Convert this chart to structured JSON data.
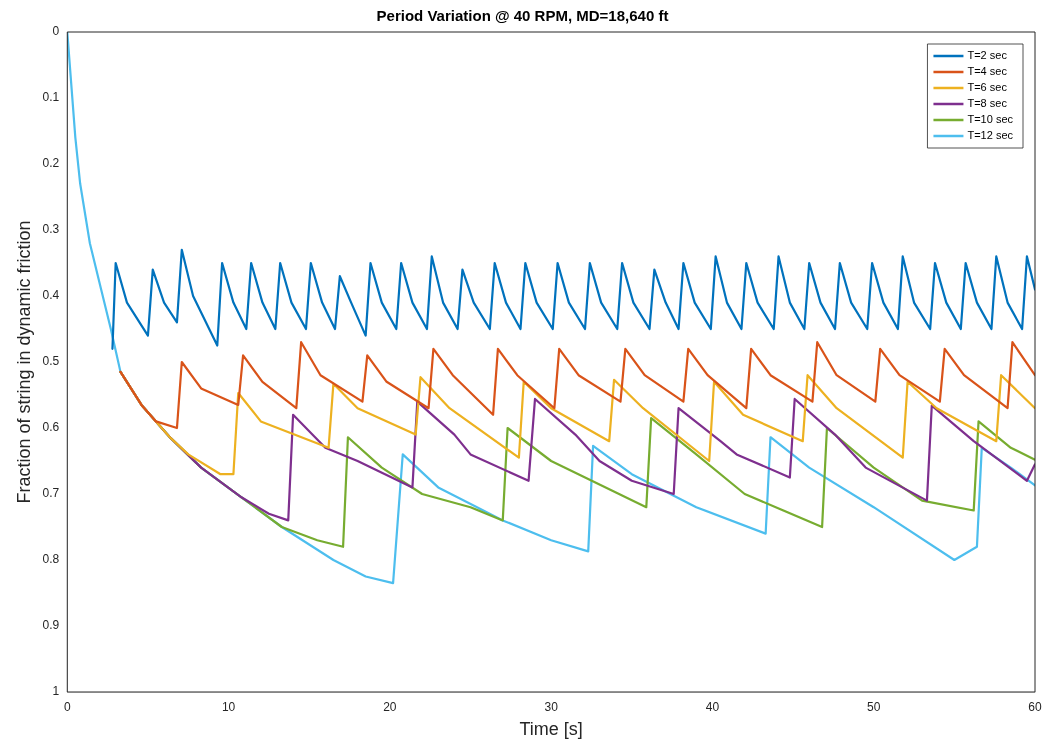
{
  "chart_data": {
    "type": "line",
    "title": "Period Variation @ 40 RPM, MD=18,640 ft",
    "xlabel": "Time [s]",
    "ylabel": "Fraction of string in dynamic friction",
    "xlim": [
      0,
      60
    ],
    "xticks": [
      0,
      10,
      20,
      30,
      40,
      50,
      60
    ],
    "ylim": [
      1,
      0
    ],
    "yticks": [
      0,
      0.1,
      0.2,
      0.3,
      0.4,
      0.5,
      0.6,
      0.7,
      0.8,
      0.9,
      1
    ],
    "grid": false,
    "legend": "top right",
    "marker": "none",
    "line_style": "solid",
    "series": [
      {
        "name": "T=2 sec",
        "color": "#0072bd",
        "x": [
          2.8,
          3.0,
          3.7,
          5.0,
          5.3,
          6.0,
          6.8,
          7.1,
          7.8,
          9.3,
          9.6,
          10.3,
          11.1,
          11.4,
          12.1,
          12.9,
          13.2,
          13.9,
          14.8,
          15.1,
          15.8,
          16.6,
          16.9,
          17.6,
          18.5,
          18.8,
          19.5,
          20.4,
          20.7,
          21.4,
          22.3,
          22.6,
          23.3,
          24.2,
          24.5,
          25.2,
          26.2,
          26.5,
          27.2,
          28.1,
          28.4,
          29.1,
          30.1,
          30.4,
          31.1,
          32.1,
          32.4,
          33.1,
          34.1,
          34.4,
          35.1,
          36.1,
          36.4,
          37.1,
          37.9,
          38.2,
          38.9,
          39.9,
          40.2,
          40.9,
          41.8,
          42.1,
          42.8,
          43.8,
          44.1,
          44.8,
          45.7,
          46.0,
          46.7,
          47.6,
          47.9,
          48.6,
          49.6,
          49.9,
          50.6,
          51.5,
          51.8,
          52.5,
          53.5,
          53.8,
          54.5,
          55.4,
          55.7,
          56.4,
          57.3,
          57.6,
          58.3,
          59.2,
          59.5,
          60
        ],
        "values": [
          0.48,
          0.35,
          0.41,
          0.46,
          0.36,
          0.41,
          0.44,
          0.33,
          0.4,
          0.475,
          0.35,
          0.41,
          0.45,
          0.35,
          0.41,
          0.45,
          0.35,
          0.41,
          0.45,
          0.35,
          0.41,
          0.45,
          0.37,
          0.41,
          0.46,
          0.35,
          0.41,
          0.45,
          0.35,
          0.41,
          0.45,
          0.34,
          0.41,
          0.45,
          0.36,
          0.41,
          0.45,
          0.35,
          0.41,
          0.45,
          0.35,
          0.41,
          0.45,
          0.35,
          0.41,
          0.45,
          0.35,
          0.41,
          0.45,
          0.35,
          0.41,
          0.45,
          0.36,
          0.41,
          0.45,
          0.35,
          0.41,
          0.45,
          0.34,
          0.41,
          0.45,
          0.35,
          0.41,
          0.45,
          0.34,
          0.41,
          0.45,
          0.35,
          0.41,
          0.45,
          0.35,
          0.41,
          0.45,
          0.35,
          0.41,
          0.45,
          0.34,
          0.41,
          0.45,
          0.35,
          0.41,
          0.45,
          0.35,
          0.41,
          0.45,
          0.34,
          0.41,
          0.45,
          0.34,
          0.39
        ]
      },
      {
        "name": "T=4 sec",
        "color": "#d95319",
        "x": [
          3.3,
          4.6,
          5.5,
          6.8,
          7.1,
          8.3,
          10.6,
          10.9,
          12.1,
          14.2,
          14.5,
          15.7,
          18.3,
          18.6,
          19.8,
          22.4,
          22.7,
          23.9,
          26.4,
          26.7,
          27.9,
          30.2,
          30.5,
          31.7,
          34.3,
          34.6,
          35.8,
          38.2,
          38.5,
          39.7,
          42.1,
          42.4,
          43.6,
          46.2,
          46.5,
          47.7,
          50.1,
          50.4,
          51.6,
          54.1,
          54.4,
          55.6,
          58.3,
          58.6,
          60
        ],
        "values": [
          0.515,
          0.565,
          0.59,
          0.6,
          0.5,
          0.54,
          0.565,
          0.49,
          0.53,
          0.57,
          0.47,
          0.52,
          0.56,
          0.49,
          0.53,
          0.57,
          0.48,
          0.52,
          0.58,
          0.48,
          0.52,
          0.57,
          0.48,
          0.52,
          0.56,
          0.48,
          0.52,
          0.56,
          0.48,
          0.52,
          0.57,
          0.48,
          0.52,
          0.56,
          0.47,
          0.52,
          0.56,
          0.48,
          0.52,
          0.56,
          0.48,
          0.52,
          0.57,
          0.47,
          0.52
        ]
      },
      {
        "name": "T=6 sec",
        "color": "#edb120",
        "x": [
          3.3,
          4.6,
          6.4,
          7.5,
          9.5,
          10.3,
          10.6,
          12.0,
          16.2,
          16.5,
          18.0,
          21.6,
          21.9,
          23.7,
          28.0,
          28.3,
          30.0,
          33.6,
          33.9,
          35.7,
          39.8,
          40.1,
          41.9,
          45.6,
          45.9,
          47.7,
          51.8,
          52.1,
          53.9,
          57.6,
          57.9,
          60
        ],
        "values": [
          0.515,
          0.565,
          0.615,
          0.64,
          0.67,
          0.67,
          0.547,
          0.59,
          0.63,
          0.533,
          0.57,
          0.61,
          0.523,
          0.57,
          0.645,
          0.53,
          0.57,
          0.62,
          0.527,
          0.57,
          0.65,
          0.53,
          0.58,
          0.62,
          0.52,
          0.57,
          0.645,
          0.53,
          0.57,
          0.62,
          0.52,
          0.57
        ]
      },
      {
        "name": "T=8 sec",
        "color": "#7e2f8e",
        "x": [
          3.3,
          4.6,
          6.4,
          8.3,
          10.8,
          12.5,
          13.7,
          14.0,
          16.0,
          18.0,
          21.4,
          21.7,
          24.0,
          25.0,
          28.6,
          29.0,
          31.5,
          33.0,
          35.0,
          37.6,
          37.9,
          40.5,
          41.5,
          44.8,
          45.1,
          47.6,
          49.5,
          53.3,
          53.6,
          56.2,
          59.5,
          60
        ],
        "values": [
          0.515,
          0.565,
          0.615,
          0.66,
          0.705,
          0.73,
          0.74,
          0.58,
          0.63,
          0.65,
          0.69,
          0.56,
          0.61,
          0.64,
          0.68,
          0.556,
          0.61,
          0.65,
          0.68,
          0.7,
          0.57,
          0.62,
          0.64,
          0.675,
          0.556,
          0.61,
          0.66,
          0.71,
          0.566,
          0.62,
          0.68,
          0.655
        ]
      },
      {
        "name": "T=10 sec",
        "color": "#77ac30",
        "x": [
          3.3,
          4.6,
          6.4,
          8.3,
          10.8,
          13.3,
          15.5,
          17.1,
          17.4,
          19.5,
          22.0,
          25.0,
          27.0,
          27.3,
          30.0,
          35.9,
          36.2,
          39.0,
          42.0,
          46.8,
          47.1,
          50.0,
          53.0,
          56.2,
          56.5,
          58.5,
          60
        ],
        "values": [
          0.515,
          0.565,
          0.615,
          0.66,
          0.705,
          0.75,
          0.77,
          0.78,
          0.614,
          0.66,
          0.7,
          0.72,
          0.74,
          0.6,
          0.65,
          0.72,
          0.585,
          0.64,
          0.7,
          0.75,
          0.6,
          0.66,
          0.71,
          0.725,
          0.59,
          0.63,
          0.648
        ]
      },
      {
        "name": "T=12 sec",
        "color": "#4dbeee",
        "x": [
          0,
          0.5,
          0.8,
          1.4,
          2.1,
          2.7,
          3.3,
          4.6,
          6.4,
          8.3,
          10.8,
          13.3,
          16.5,
          18.5,
          20.2,
          20.8,
          23.0,
          27.0,
          30.0,
          32.3,
          32.6,
          35.0,
          39.0,
          43.3,
          43.6,
          46.0,
          50.0,
          55.0,
          56.4,
          56.7,
          58.5,
          60
        ],
        "values": [
          0,
          0.16,
          0.23,
          0.32,
          0.39,
          0.45,
          0.515,
          0.565,
          0.615,
          0.66,
          0.705,
          0.75,
          0.8,
          0.825,
          0.835,
          0.64,
          0.69,
          0.74,
          0.77,
          0.787,
          0.627,
          0.67,
          0.72,
          0.76,
          0.614,
          0.66,
          0.72,
          0.8,
          0.78,
          0.63,
          0.66,
          0.687
        ]
      }
    ]
  }
}
